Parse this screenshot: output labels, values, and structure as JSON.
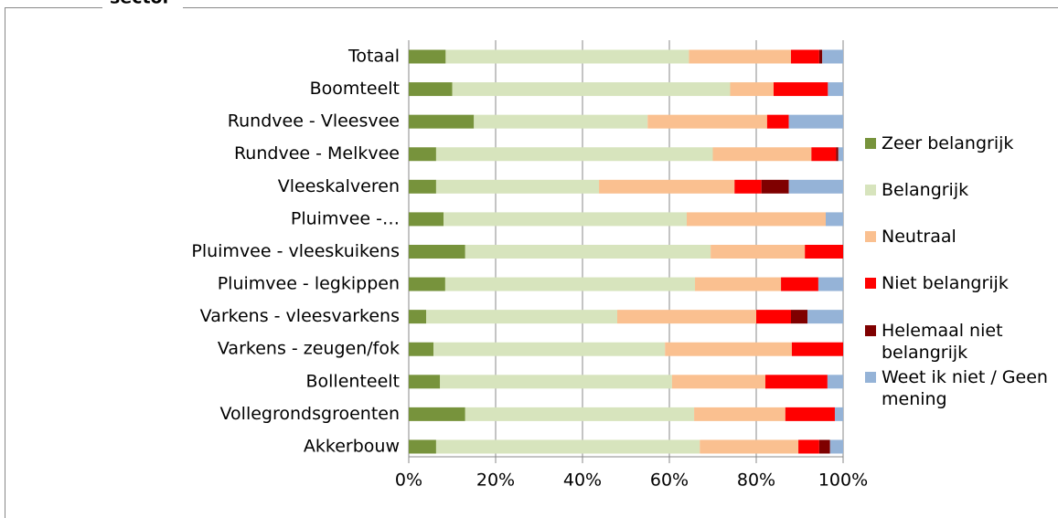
{
  "chart_data": {
    "type": "stacked_bar_horizontal",
    "title": "sector",
    "categories": [
      "Totaal",
      "Boomteelt",
      "Rundvee - Vleesvee",
      "Rundvee - Melkvee",
      "Vleeskalveren",
      "Pluimvee -…",
      "Pluimvee - vleeskuikens",
      "Pluimvee - legkippen",
      "Varkens - vleesvarkens",
      "Varkens - zeugen/fok",
      "Bollenteelt",
      "Vollegrondsgroenten",
      "Akkerbouw"
    ],
    "series": [
      {
        "name": "Zeer belangrijk",
        "color": "#77933c",
        "values": [
          8.5,
          10,
          15,
          6.3,
          6.3,
          8,
          13,
          8.4,
          4,
          5.7,
          7.2,
          13,
          6.3
        ]
      },
      {
        "name": "Belangrijk",
        "color": "#d7e4bd",
        "values": [
          56,
          64,
          40,
          63.7,
          37.5,
          56,
          56.5,
          57.5,
          44,
          53.3,
          53.4,
          52.7,
          60.7
        ]
      },
      {
        "name": "Neutraal",
        "color": "#fac090",
        "values": [
          23.5,
          10,
          27.5,
          22.7,
          31.2,
          32,
          21.7,
          19.8,
          32,
          29.2,
          21.5,
          21,
          22.7
        ]
      },
      {
        "name": "Niet belangrijk",
        "color": "#ff0000",
        "values": [
          6.5,
          12.5,
          5,
          5.7,
          6.2,
          0,
          8.8,
          8.6,
          8,
          11.8,
          14.3,
          11.4,
          4.8
        ]
      },
      {
        "name": "Helemaal niet belangrijk",
        "color": "#7f0000",
        "values": [
          0.7,
          0,
          0,
          0.5,
          6.3,
          0,
          0,
          0,
          3.8,
          0,
          0,
          0,
          2.5
        ]
      },
      {
        "name": "Weet ik niet / Geen mening",
        "color": "#95b3d7",
        "values": [
          4.8,
          3.5,
          12.5,
          1.1,
          12.5,
          4,
          0,
          5.7,
          8.2,
          0,
          3.6,
          1.9,
          3
        ]
      }
    ],
    "xlim": [
      0,
      100
    ],
    "xticks": [
      {
        "value": 0,
        "label": "0%"
      },
      {
        "value": 20,
        "label": "20%"
      },
      {
        "value": 40,
        "label": "40%"
      },
      {
        "value": 60,
        "label": "60%"
      },
      {
        "value": 80,
        "label": "80%"
      },
      {
        "value": 100,
        "label": "100%"
      }
    ],
    "grid": true,
    "legend": "right"
  }
}
